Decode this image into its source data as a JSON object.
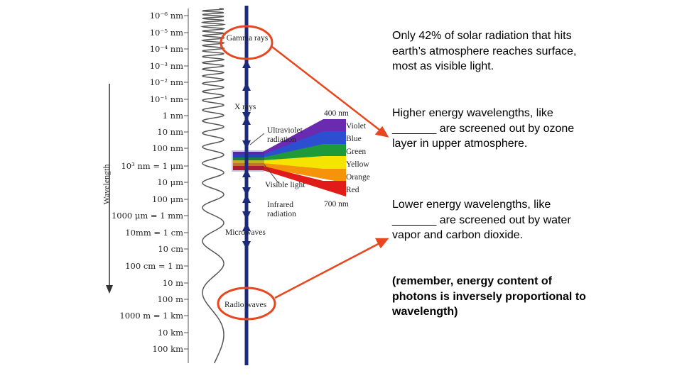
{
  "diagram": {
    "axis_label": "Wavelength",
    "ticks": [
      "10⁻⁶ nm",
      "10⁻⁵ nm",
      "10⁻⁴ nm",
      "10⁻³ nm",
      "10⁻² nm",
      "10⁻¹ nm",
      "1 nm",
      "10 nm",
      "100 nm",
      "10³ nm = 1 μm",
      "10 μm",
      "100 μm",
      "1000 μm = 1 mm",
      "10mm = 1 cm",
      "10 cm",
      "100 cm = 1 m",
      "10 m",
      "100 m",
      "1000 m = 1 km",
      "10 km",
      "100 km"
    ],
    "regions": {
      "gamma": "Gamma rays",
      "xray": "X rays",
      "uv": "Ultraviolet radiation",
      "visible": "Visible light",
      "infrared": "Infrared radiation",
      "microwaves": "Microwaves",
      "radio": "Radio waves"
    },
    "spectrum": {
      "start": "400 nm",
      "end": "700 nm",
      "colors": [
        "Violet",
        "Blue",
        "Green",
        "Yellow",
        "Orange",
        "Red"
      ]
    }
  },
  "notes": [
    {
      "text": "Only 42% of solar radiation that hits earth’s atmosphere reaches surface, most as visible light."
    },
    {
      "text": "Higher energy wavelengths, like _______ are screened out by ozone layer in upper atmosphere."
    },
    {
      "text": "Lower energy wavelengths, like _______ are screened out by water vapor and carbon dioxide."
    },
    {
      "text": "(remember, energy content of photons is inversely proportional  to wavelength)"
    }
  ],
  "colors": {
    "highlight": "#e8461e",
    "axis_blue": "#1b2a7a",
    "spectrum": [
      "#6b2bb0",
      "#2c4fd1",
      "#1f9a3a",
      "#f5e400",
      "#f5940a",
      "#e11a1a"
    ]
  }
}
